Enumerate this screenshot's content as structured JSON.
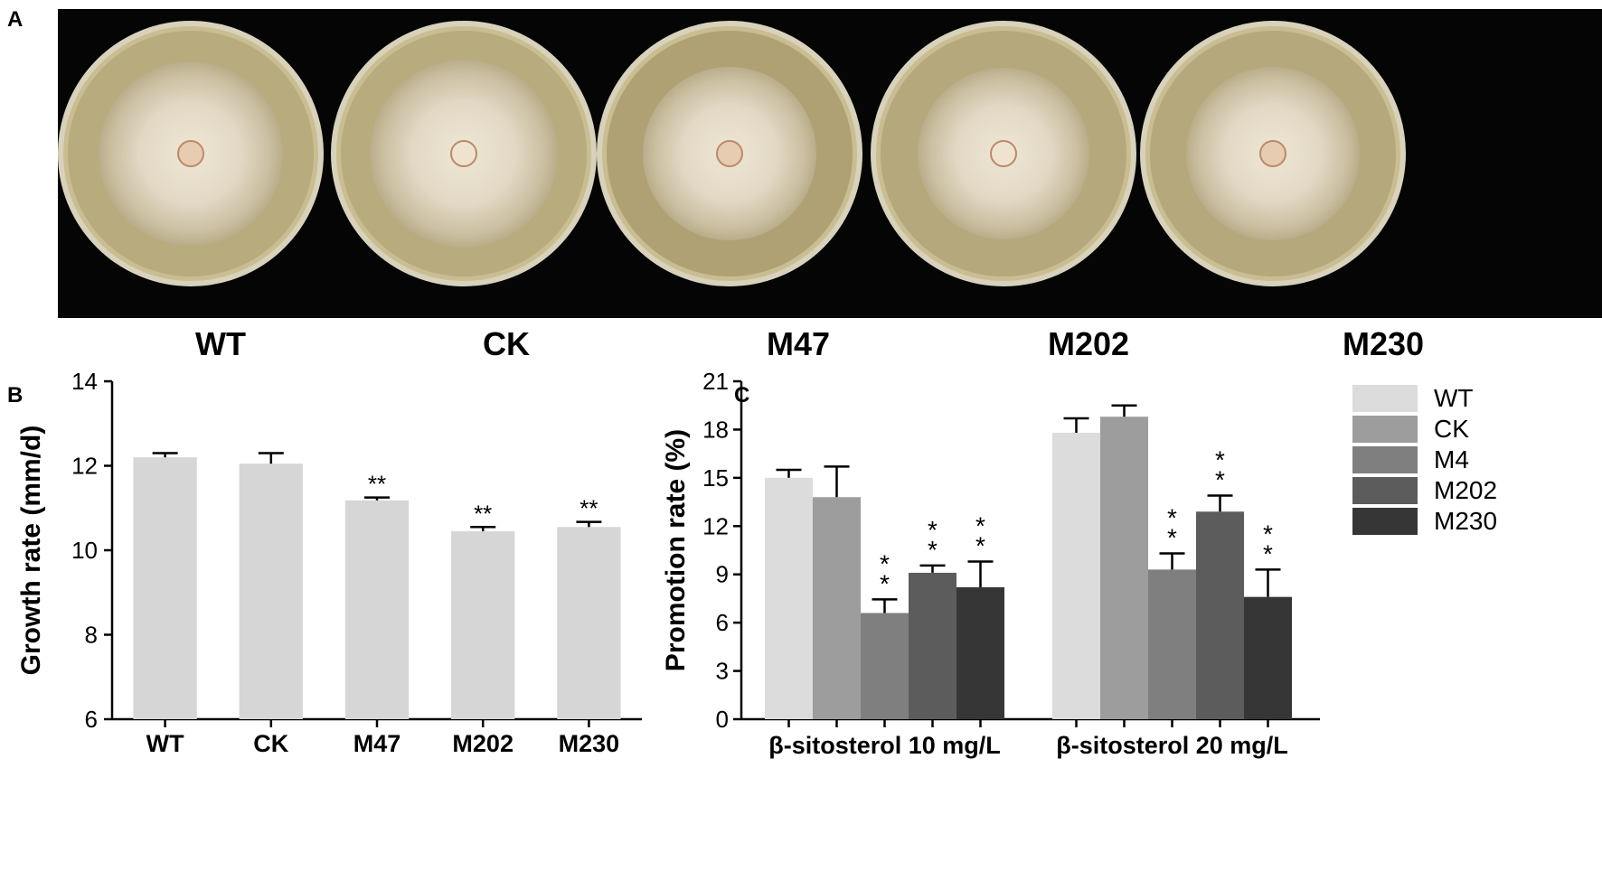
{
  "panels": {
    "a": "A",
    "b": "B",
    "c": "C"
  },
  "plates": [
    "WT",
    "CK",
    "M47",
    "M202",
    "M230"
  ],
  "chart_data": [
    {
      "type": "bar",
      "panel": "B",
      "categories": [
        "WT",
        "CK",
        "M47",
        "M202",
        "M230"
      ],
      "values": [
        12.2,
        12.05,
        11.18,
        10.45,
        10.55
      ],
      "errors": [
        0.1,
        0.25,
        0.07,
        0.1,
        0.12
      ],
      "significance": [
        "",
        "",
        "**",
        "**",
        "**"
      ],
      "ylabel": "Growth rate (mm/d)",
      "xlabel": "",
      "ylim": [
        6,
        14
      ],
      "yticks": [
        6,
        8,
        10,
        12,
        14
      ],
      "bar_color": "#d6d6d6",
      "grid": false
    },
    {
      "type": "bar",
      "panel": "C",
      "categories": [
        "β-sitosterol 10 mg/L",
        "β-sitosterol  20 mg/L"
      ],
      "series": [
        {
          "name": "WT",
          "color": "#dcdcdc",
          "values": [
            15.0,
            17.8
          ],
          "errors": [
            0.5,
            0.9
          ],
          "significance": [
            "",
            ""
          ]
        },
        {
          "name": "CK",
          "color": "#9d9d9d",
          "values": [
            13.8,
            18.8
          ],
          "errors": [
            1.9,
            0.7
          ],
          "significance": [
            "",
            ""
          ]
        },
        {
          "name": "M4",
          "color": "#7f7f7f",
          "values": [
            6.6,
            9.3
          ],
          "errors": [
            0.85,
            1.0
          ],
          "significance": [
            "**",
            "**"
          ]
        },
        {
          "name": "M202",
          "color": "#5c5c5c",
          "values": [
            9.1,
            12.9
          ],
          "errors": [
            0.45,
            1.0
          ],
          "significance": [
            "**",
            "**"
          ]
        },
        {
          "name": "M230",
          "color": "#363636",
          "values": [
            8.2,
            7.6
          ],
          "errors": [
            1.6,
            1.7
          ],
          "significance": [
            "**",
            "**"
          ]
        }
      ],
      "ylabel": "Promotion rate (%)",
      "xlabel": "",
      "ylim": [
        0,
        21
      ],
      "yticks": [
        0,
        3,
        6,
        9,
        12,
        15,
        18,
        21
      ],
      "legend": "top-right",
      "grid": false
    }
  ]
}
